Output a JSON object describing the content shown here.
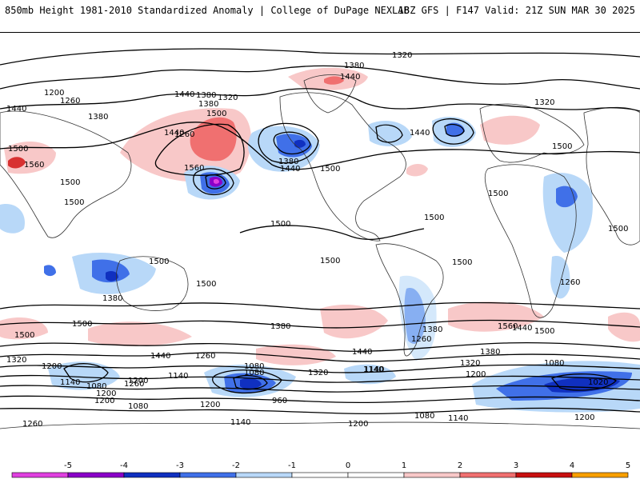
{
  "header": {
    "title_left": "850mb Height 1981-2010 Standardized Anomaly | College of DuPage NEXLAB",
    "title_right": "18Z GFS | F147 Valid: 21Z SUN MAR 30 2025"
  },
  "contour_labels": [
    "1320",
    "1380",
    "1440",
    "1200",
    "1260",
    "1380",
    "1440",
    "1500",
    "1560",
    "1500",
    "1380",
    "1440",
    "1500",
    "1440",
    "1380",
    "1320",
    "1500",
    "1500",
    "1500",
    "1500",
    "1500",
    "1500",
    "1560",
    "1380",
    "1260",
    "1440",
    "1440",
    "1320",
    "1200",
    "1140",
    "1080",
    "1020",
    "1080",
    "1200",
    "1260",
    "1140",
    "1140",
    "1080",
    "1200",
    "1320",
    "1380",
    "1440",
    "1500",
    "1380",
    "1260",
    "1200",
    "1140",
    "1080",
    "960",
    "1140",
    "1200",
    "1140",
    "1080",
    "1200",
    "1260",
    "1320",
    "1380",
    "1440",
    "1500",
    "1560",
    "1500",
    "1320",
    "1260",
    "1200",
    "1080",
    "1200",
    "1260",
    "1440",
    "1380",
    "1500",
    "1500",
    "1500",
    "1500",
    "1500"
  ],
  "legend": {
    "tick_labels": [
      "-5",
      "-4",
      "-3",
      "-2",
      "-1",
      "0",
      "1",
      "2",
      "3",
      "4",
      "5"
    ],
    "colors": [
      "#e040e0",
      "#8a00c8",
      "#1030c0",
      "#4070e8",
      "#b8d8f8",
      "#ffffff",
      "#ffffff",
      "#f8c8c8",
      "#f07070",
      "#c81010",
      "#f8a000"
    ]
  },
  "colors": {
    "pos1": "#f8c8c8",
    "pos2": "#f07070",
    "pos3": "#d83030",
    "neg1": "#b8d8f8",
    "neg2": "#4070e8",
    "neg3": "#1030c0",
    "neg4": "#8a00c8",
    "neg5": "#e040e0"
  }
}
